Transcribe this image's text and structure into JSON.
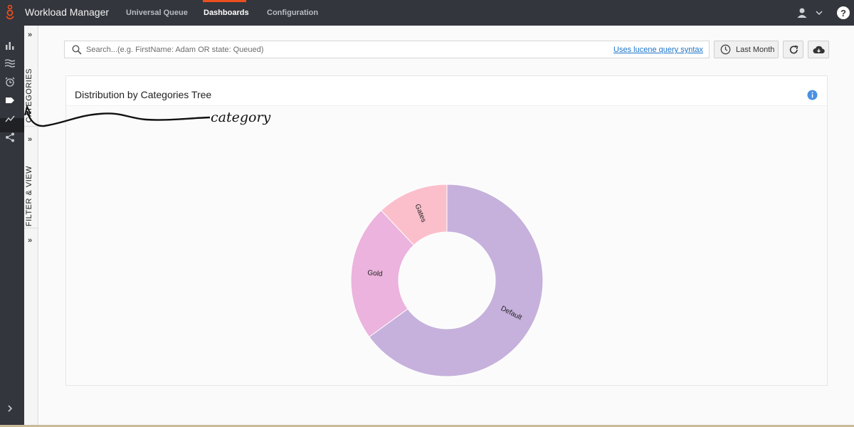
{
  "app": {
    "title": "Workload Manager"
  },
  "nav": {
    "tabs": [
      {
        "label": "Universal Queue",
        "active": false
      },
      {
        "label": "Dashboards",
        "active": true
      },
      {
        "label": "Configuration",
        "active": false
      }
    ]
  },
  "header_icons": [
    "user-icon",
    "chevron-down-icon",
    "help-icon"
  ],
  "rail": {
    "icons": [
      "bar-chart-icon",
      "waves-icon",
      "alarm-clock-icon",
      "tag-icon",
      "trend-line-icon",
      "share-icon"
    ],
    "active": "tag-icon",
    "expand_icon": "chevron-right-icon"
  },
  "side_panels": [
    {
      "label": "CATEGORIES"
    },
    {
      "label": "FILTER & VIEW"
    }
  ],
  "search": {
    "placeholder": "Search...(e.g. FirstName: Adam OR state: Queued)",
    "link": "Uses lucene query syntax"
  },
  "toolbar": {
    "period_label": "Last Month"
  },
  "card": {
    "title": "Distribution by Categories Tree"
  },
  "annotation": {
    "text": "category"
  },
  "colors": {
    "topbar": "#33363c",
    "accent": "#ea4f1f",
    "link": "#1b74c9"
  },
  "chart_data": {
    "type": "pie",
    "donut": true,
    "categories": [
      "Default",
      "Gold",
      "Gates"
    ],
    "values": [
      65,
      23,
      12
    ],
    "colors": [
      "#c6b1dc",
      "#ebb3dd",
      "#fbbfcc"
    ],
    "title": "Distribution by Categories Tree"
  }
}
